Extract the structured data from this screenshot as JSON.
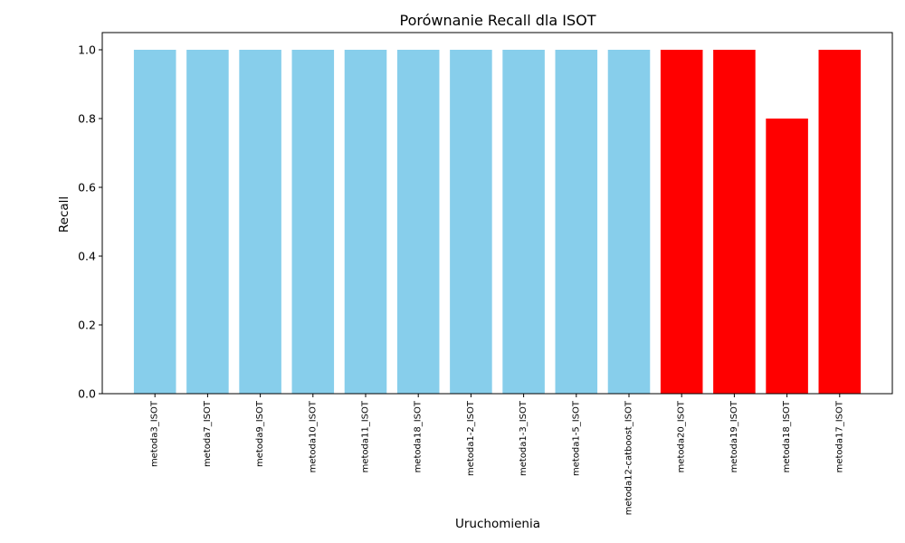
{
  "chart_data": {
    "type": "bar",
    "title": "Porównanie Recall dla ISOT",
    "xlabel": "Uruchomienia",
    "ylabel": "Recall",
    "ylim": [
      0,
      1.05
    ],
    "yticks": [
      "0.0",
      "0.2",
      "0.4",
      "0.6",
      "0.8",
      "1.0"
    ],
    "grid": false,
    "categories": [
      "metoda3_ISOT",
      "metoda7_ISOT",
      "metoda9_ISOT",
      "metoda10_ISOT",
      "metoda11_ISOT",
      "metoda18_ISOT",
      "metoda1-2_ISOT",
      "metoda1-3_ISOT",
      "metoda1-5_ISOT",
      "metoda12-catboost_ISOT",
      "metoda20_ISOT",
      "metoda19_ISOT",
      "metoda18_ISOT",
      "metoda17_ISOT"
    ],
    "values": [
      1.0,
      1.0,
      1.0,
      1.0,
      1.0,
      1.0,
      1.0,
      1.0,
      1.0,
      1.0,
      1.0,
      1.0,
      0.8,
      1.0
    ],
    "bar_colors": [
      "#87ceeb",
      "#87ceeb",
      "#87ceeb",
      "#87ceeb",
      "#87ceeb",
      "#87ceeb",
      "#87ceeb",
      "#87ceeb",
      "#87ceeb",
      "#87ceeb",
      "#ff0000",
      "#ff0000",
      "#ff0000",
      "#ff0000"
    ]
  }
}
